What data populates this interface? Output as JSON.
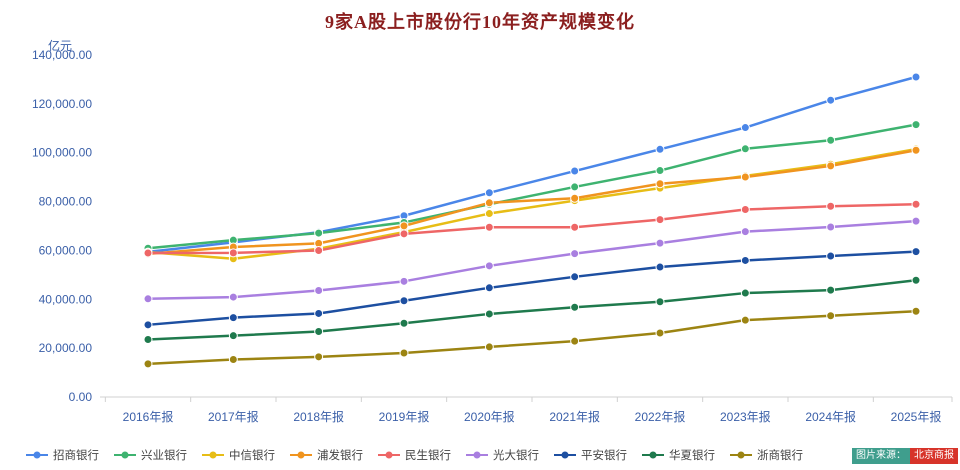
{
  "style": {
    "title_color": "#8b1f1f",
    "axis_label_color": "#3a5fa8",
    "axis_line_color": "#d0d0d0",
    "legend_text_color": "#444444"
  },
  "watermark": {
    "prefix": "图片来源：",
    "brand": "北京商报"
  },
  "chart_data": {
    "type": "line",
    "title": "9家A股上市股份行10年资产规模变化",
    "ylabel": "亿元",
    "xlabel": "",
    "ylim": [
      0,
      140000
    ],
    "ytick_step": 20000,
    "grid": false,
    "legend_position": "bottom",
    "categories": [
      "2016年报",
      "2017年报",
      "2018年报",
      "2019年报",
      "2020年报",
      "2021年报",
      "2022年报",
      "2023年报",
      "2024年报",
      "2025年报"
    ],
    "series": [
      {
        "name": "招商银行",
        "color": "#4a86e8",
        "values": [
          59400,
          63300,
          67450,
          74200,
          83600,
          92500,
          101400,
          110300,
          121500,
          131000
        ]
      },
      {
        "name": "兴业银行",
        "color": "#3eb370",
        "values": [
          60900,
          64200,
          67100,
          71450,
          78900,
          86000,
          92700,
          101600,
          105100,
          111500
        ]
      },
      {
        "name": "中信银行",
        "color": "#e7bd16",
        "values": [
          59300,
          56600,
          60700,
          67500,
          75100,
          80400,
          85500,
          90500,
          95300,
          101500
        ]
      },
      {
        "name": "浦发银行",
        "color": "#f0941f",
        "values": [
          58600,
          61400,
          62900,
          70050,
          79500,
          81350,
          87300,
          90050,
          94600,
          101000
        ]
      },
      {
        "name": "民生银行",
        "color": "#ee6666",
        "values": [
          58950,
          59000,
          59950,
          66800,
          69500,
          69500,
          72600,
          76750,
          78100,
          78900
        ]
      },
      {
        "name": "光大银行",
        "color": "#a97fe0",
        "values": [
          40200,
          40900,
          43600,
          47350,
          53700,
          58700,
          63000,
          67700,
          69600,
          72000
        ]
      },
      {
        "name": "平安银行",
        "color": "#1d4fa1",
        "values": [
          29550,
          32500,
          34200,
          39400,
          44700,
          49200,
          53200,
          55900,
          57700,
          59500
        ]
      },
      {
        "name": "华夏银行",
        "color": "#1f7a4d",
        "values": [
          23550,
          25100,
          26800,
          30200,
          34000,
          36750,
          39000,
          42550,
          43750,
          47800
        ]
      },
      {
        "name": "浙商银行",
        "color": "#9c8412",
        "values": [
          13550,
          15350,
          16450,
          18000,
          20500,
          22850,
          26200,
          31450,
          33250,
          35100
        ]
      }
    ]
  }
}
